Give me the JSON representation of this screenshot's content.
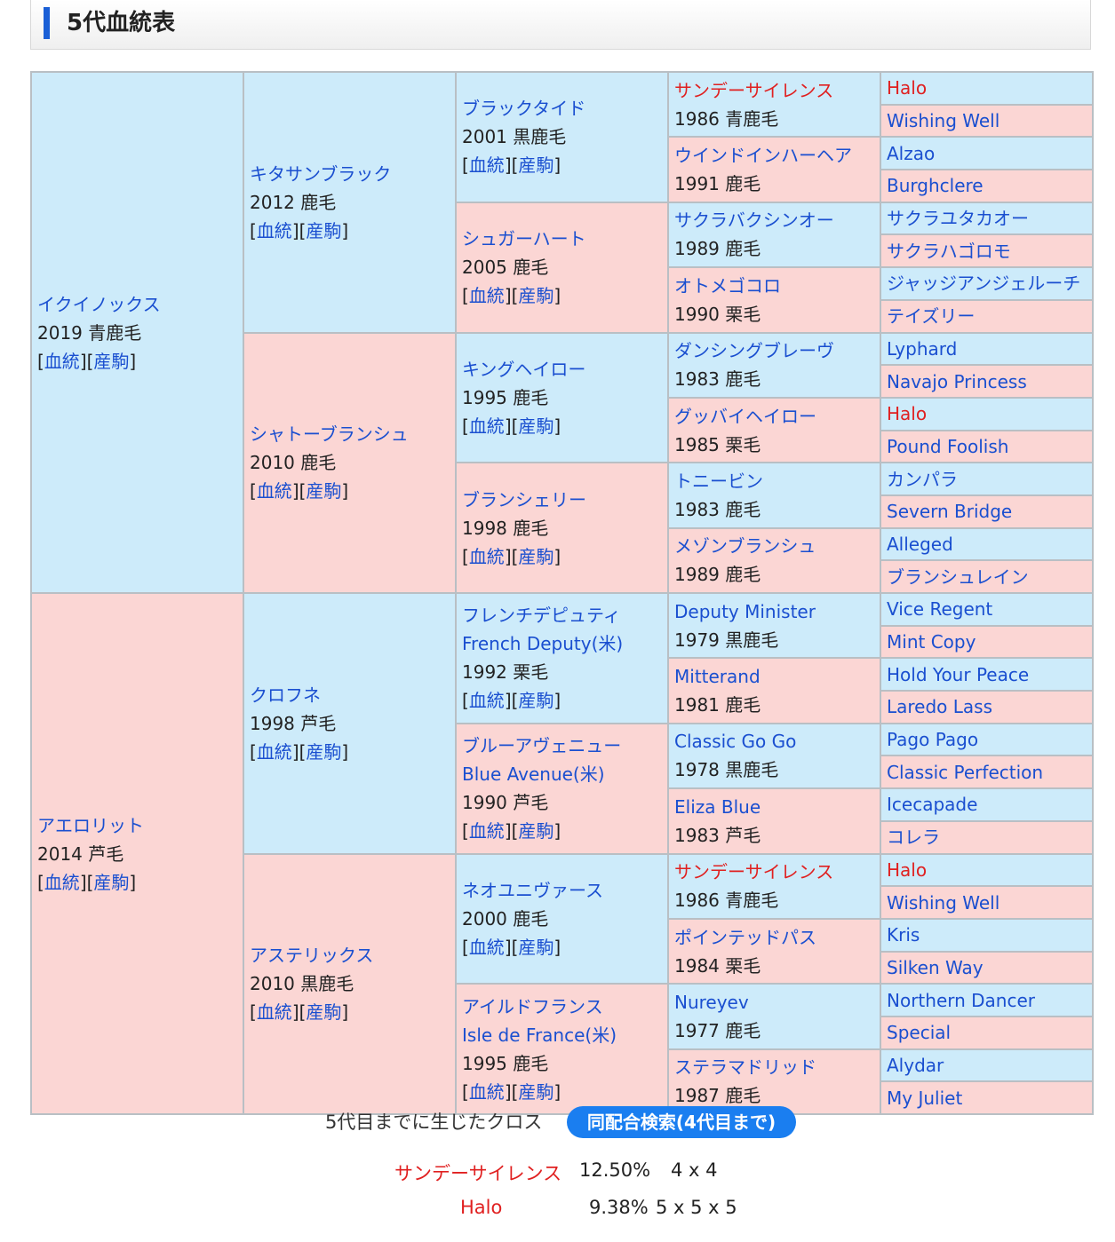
{
  "section_title": "5代血統表",
  "link_labels": {
    "pedigree": "血統",
    "offspring": "産駒"
  },
  "pedigree": {
    "sire": {
      "name": "イクイノックス",
      "info": "2019 青鹿毛"
    },
    "dam": {
      "name": "アエロリット",
      "info": "2014 芦毛"
    },
    "g2": [
      {
        "name": "キタサンブラック",
        "info": "2012 鹿毛"
      },
      {
        "name": "シャトーブランシュ",
        "info": "2010 鹿毛"
      },
      {
        "name": "クロフネ",
        "info": "1998 芦毛"
      },
      {
        "name": "アステリックス",
        "info": "2010 黒鹿毛"
      }
    ],
    "g3": [
      {
        "name": "ブラックタイド",
        "info": "2001 黒鹿毛"
      },
      {
        "name": "シュガーハート",
        "info": "2005 鹿毛"
      },
      {
        "name": "キングヘイロー",
        "info": "1995 鹿毛"
      },
      {
        "name": "ブランシェリー",
        "info": "1998 鹿毛"
      },
      {
        "name": "フレンチデピュティ",
        "name_en": "French Deputy(米)",
        "info": "1992 栗毛"
      },
      {
        "name": "ブルーアヴェニュー",
        "name_en": "Blue Avenue(米)",
        "info": "1990 芦毛"
      },
      {
        "name": "ネオユニヴァース",
        "info": "2000 鹿毛"
      },
      {
        "name": "アイルドフランス",
        "name_en": "Isle de France(米)",
        "info": "1995 鹿毛"
      }
    ],
    "g4": [
      {
        "name": "サンデーサイレンス",
        "info": "1986 青鹿毛",
        "cross": true
      },
      {
        "name": "ウインドインハーヘア",
        "info": "1991 鹿毛"
      },
      {
        "name": "サクラバクシンオー",
        "info": "1989 鹿毛"
      },
      {
        "name": "オトメゴコロ",
        "info": "1990 栗毛"
      },
      {
        "name": "ダンシングブレーヴ",
        "info": "1983 鹿毛"
      },
      {
        "name": "グッバイヘイロー",
        "info": "1985 栗毛"
      },
      {
        "name": "トニービン",
        "info": "1983 鹿毛"
      },
      {
        "name": "メゾンブランシュ",
        "info": "1989 鹿毛"
      },
      {
        "name": "Deputy Minister",
        "info": "1979 黒鹿毛"
      },
      {
        "name": "Mitterand",
        "info": "1981 鹿毛"
      },
      {
        "name": "Classic Go Go",
        "info": "1978 黒鹿毛"
      },
      {
        "name": "Eliza Blue",
        "info": "1983 芦毛"
      },
      {
        "name": "サンデーサイレンス",
        "info": "1986 青鹿毛",
        "cross": true
      },
      {
        "name": "ポインテッドパス",
        "info": "1984 栗毛"
      },
      {
        "name": "Nureyev",
        "info": "1977 鹿毛"
      },
      {
        "name": "ステラマドリッド",
        "info": "1987 鹿毛"
      }
    ],
    "g5": [
      {
        "name": "Halo",
        "cross": true
      },
      {
        "name": "Wishing Well"
      },
      {
        "name": "Alzao"
      },
      {
        "name": "Burghclere"
      },
      {
        "name": "サクラユタカオー"
      },
      {
        "name": "サクラハゴロモ"
      },
      {
        "name": "ジャッジアンジェルーチ"
      },
      {
        "name": "テイズリー"
      },
      {
        "name": "Lyphard"
      },
      {
        "name": "Navajo Princess"
      },
      {
        "name": "Halo",
        "cross": true
      },
      {
        "name": "Pound Foolish"
      },
      {
        "name": "カンパラ"
      },
      {
        "name": "Severn Bridge"
      },
      {
        "name": "Alleged"
      },
      {
        "name": "ブランシュレイン"
      },
      {
        "name": "Vice Regent"
      },
      {
        "name": "Mint Copy"
      },
      {
        "name": "Hold Your Peace"
      },
      {
        "name": "Laredo Lass"
      },
      {
        "name": "Pago Pago"
      },
      {
        "name": "Classic Perfection"
      },
      {
        "name": "Icecapade"
      },
      {
        "name": "コレラ"
      },
      {
        "name": "Halo",
        "cross": true
      },
      {
        "name": "Wishing Well"
      },
      {
        "name": "Kris"
      },
      {
        "name": "Silken Way"
      },
      {
        "name": "Northern Dancer"
      },
      {
        "name": "Special"
      },
      {
        "name": "Alydar"
      },
      {
        "name": "My Juliet"
      }
    ]
  },
  "cross_section": {
    "label": "5代目までに生じたクロス",
    "search_button": "同配合検索(4代目まで)",
    "crosses": [
      {
        "name": "サンデーサイレンス",
        "percent": "12.50%",
        "generations": "4 x 4"
      },
      {
        "name": "Halo",
        "percent": "9.38%",
        "generations": "5 x 5 x 5"
      }
    ]
  },
  "colors": {
    "male_cell": "#cdebfa",
    "female_cell": "#fbd6d4",
    "link": "#1a4fd0",
    "cross_highlight": "#e02020",
    "button": "#1a7ef0"
  }
}
